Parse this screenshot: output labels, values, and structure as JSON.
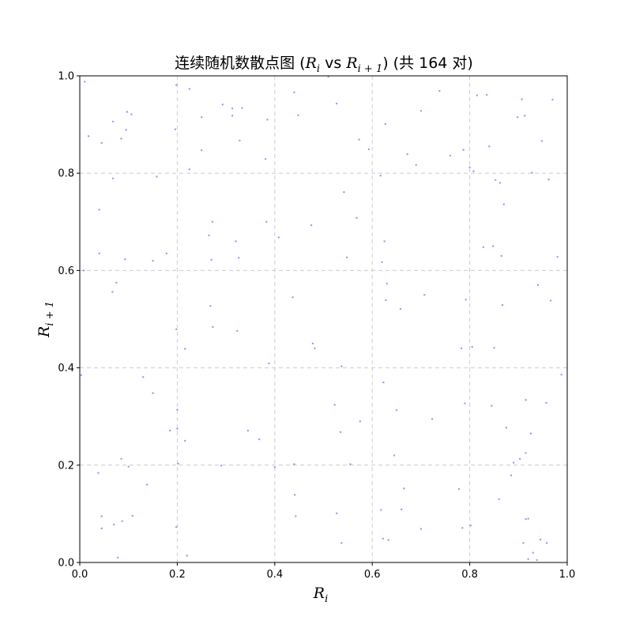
{
  "chart_data": {
    "type": "scatter",
    "title": "连续随机数散点图 (R_i vs R_{i+1}) (共 164 对)",
    "xlabel": "R_i",
    "ylabel": "R_{i+1}",
    "xlim": [
      0.0,
      1.0
    ],
    "ylim": [
      0.0,
      1.0
    ],
    "xticks": [
      "0.0",
      "0.2",
      "0.4",
      "0.6",
      "0.8",
      "1.0"
    ],
    "yticks": [
      "0.0",
      "0.2",
      "0.4",
      "0.6",
      "0.8",
      "1.0"
    ],
    "grid": true,
    "point_color": "#7777ee",
    "points": [
      [
        0.01,
        0.988
      ],
      [
        0.018,
        0.876
      ],
      [
        0.045,
        0.862
      ],
      [
        0.068,
        0.906
      ],
      [
        0.085,
        0.871
      ],
      [
        0.095,
        0.889
      ],
      [
        0.097,
        0.926
      ],
      [
        0.106,
        0.921
      ],
      [
        0.068,
        0.789
      ],
      [
        0.04,
        0.725
      ],
      [
        0.04,
        0.635
      ],
      [
        0.093,
        0.623
      ],
      [
        0.008,
        0.6
      ],
      [
        0.075,
        0.575
      ],
      [
        0.067,
        0.556
      ],
      [
        0.003,
        0.385
      ],
      [
        0.038,
        0.184
      ],
      [
        0.085,
        0.213
      ],
      [
        0.1,
        0.197
      ],
      [
        0.045,
        0.095
      ],
      [
        0.045,
        0.07
      ],
      [
        0.07,
        0.078
      ],
      [
        0.087,
        0.085
      ],
      [
        0.108,
        0.096
      ],
      [
        0.078,
        0.01
      ],
      [
        0.13,
        0.381
      ],
      [
        0.15,
        0.348
      ],
      [
        0.138,
        0.16
      ],
      [
        0.158,
        0.793
      ],
      [
        0.15,
        0.62
      ],
      [
        0.178,
        0.635
      ],
      [
        0.185,
        0.271
      ],
      [
        0.198,
        0.981
      ],
      [
        0.196,
        0.89
      ],
      [
        0.198,
        0.479
      ],
      [
        0.2,
        0.314
      ],
      [
        0.2,
        0.275
      ],
      [
        0.202,
        0.203
      ],
      [
        0.198,
        0.073
      ],
      [
        0.216,
        0.439
      ],
      [
        0.216,
        0.25
      ],
      [
        0.22,
        0.014
      ],
      [
        0.225,
        0.973
      ],
      [
        0.225,
        0.808
      ],
      [
        0.25,
        0.915
      ],
      [
        0.25,
        0.847
      ],
      [
        0.265,
        0.672
      ],
      [
        0.268,
        0.527
      ],
      [
        0.27,
        0.622
      ],
      [
        0.272,
        0.7
      ],
      [
        0.273,
        0.484
      ],
      [
        0.29,
        0.199
      ],
      [
        0.293,
        0.941
      ],
      [
        0.313,
        0.933
      ],
      [
        0.313,
        0.918
      ],
      [
        0.32,
        0.66
      ],
      [
        0.323,
        0.476
      ],
      [
        0.326,
        0.626
      ],
      [
        0.328,
        0.867
      ],
      [
        0.333,
        0.934
      ],
      [
        0.345,
        0.271
      ],
      [
        0.368,
        0.253
      ],
      [
        0.381,
        0.829
      ],
      [
        0.383,
        0.7
      ],
      [
        0.385,
        0.91
      ],
      [
        0.388,
        0.409
      ],
      [
        0.4,
        0.196
      ],
      [
        0.408,
        0.668
      ],
      [
        0.437,
        0.545
      ],
      [
        0.44,
        0.966
      ],
      [
        0.44,
        0.202
      ],
      [
        0.441,
        0.139
      ],
      [
        0.443,
        0.095
      ],
      [
        0.448,
        0.919
      ],
      [
        0.475,
        0.693
      ],
      [
        0.478,
        0.45
      ],
      [
        0.482,
        0.44
      ],
      [
        0.523,
        0.324
      ],
      [
        0.527,
        0.101
      ],
      [
        0.527,
        0.943
      ],
      [
        0.535,
        0.268
      ],
      [
        0.537,
        0.04
      ],
      [
        0.537,
        0.403
      ],
      [
        0.542,
        0.761
      ],
      [
        0.548,
        0.627
      ],
      [
        0.555,
        0.202
      ],
      [
        0.568,
        0.708
      ],
      [
        0.573,
        0.869
      ],
      [
        0.575,
        0.29
      ],
      [
        0.593,
        0.849
      ],
      [
        0.617,
        0.795
      ],
      [
        0.618,
        0.108
      ],
      [
        0.62,
        0.617
      ],
      [
        0.622,
        0.049
      ],
      [
        0.623,
        0.37
      ],
      [
        0.625,
        0.66
      ],
      [
        0.627,
        0.901
      ],
      [
        0.628,
        0.539
      ],
      [
        0.63,
        0.573
      ],
      [
        0.633,
        0.046
      ],
      [
        0.645,
        0.22
      ],
      [
        0.65,
        0.313
      ],
      [
        0.658,
        0.521
      ],
      [
        0.66,
        0.109
      ],
      [
        0.665,
        0.152
      ],
      [
        0.672,
        0.839
      ],
      [
        0.69,
        0.817
      ],
      [
        0.7,
        0.928
      ],
      [
        0.7,
        0.069
      ],
      [
        0.707,
        0.55
      ],
      [
        0.723,
        0.295
      ],
      [
        0.738,
        0.969
      ],
      [
        0.76,
        0.836
      ],
      [
        0.778,
        0.151
      ],
      [
        0.783,
        0.44
      ],
      [
        0.785,
        0.071
      ],
      [
        0.787,
        0.848
      ],
      [
        0.79,
        0.327
      ],
      [
        0.792,
        0.54
      ],
      [
        0.8,
        0.812
      ],
      [
        0.802,
        0.076
      ],
      [
        0.805,
        0.443
      ],
      [
        0.808,
        0.804
      ],
      [
        0.815,
        0.96
      ],
      [
        0.828,
        0.648
      ],
      [
        0.835,
        0.961
      ],
      [
        0.84,
        0.855
      ],
      [
        0.845,
        0.322
      ],
      [
        0.848,
        0.65
      ],
      [
        0.85,
        0.441
      ],
      [
        0.853,
        0.786
      ],
      [
        0.86,
        0.13
      ],
      [
        0.862,
        0.78
      ],
      [
        0.865,
        0.63
      ],
      [
        0.867,
        0.529
      ],
      [
        0.87,
        0.736
      ],
      [
        0.875,
        0.277
      ],
      [
        0.885,
        0.179
      ],
      [
        0.89,
        0.205
      ],
      [
        0.898,
        0.915
      ],
      [
        0.903,
        0.213
      ],
      [
        0.907,
        0.952
      ],
      [
        0.91,
        0.04
      ],
      [
        0.913,
        0.918
      ],
      [
        0.915,
        0.089
      ],
      [
        0.915,
        0.334
      ],
      [
        0.915,
        0.225
      ],
      [
        0.92,
        0.007
      ],
      [
        0.92,
        0.09
      ],
      [
        0.925,
        0.265
      ],
      [
        0.928,
        0.801
      ],
      [
        0.93,
        0.02
      ],
      [
        0.938,
        0.005
      ],
      [
        0.94,
        0.57
      ],
      [
        0.945,
        0.047
      ],
      [
        0.948,
        0.866
      ],
      [
        0.957,
        0.328
      ],
      [
        0.958,
        0.04
      ],
      [
        0.962,
        0.787
      ],
      [
        0.966,
        0.538
      ],
      [
        0.97,
        0.951
      ],
      [
        0.98,
        0.628
      ],
      [
        0.988,
        0.386
      ],
      [
        0.51,
        0.998
      ]
    ]
  }
}
